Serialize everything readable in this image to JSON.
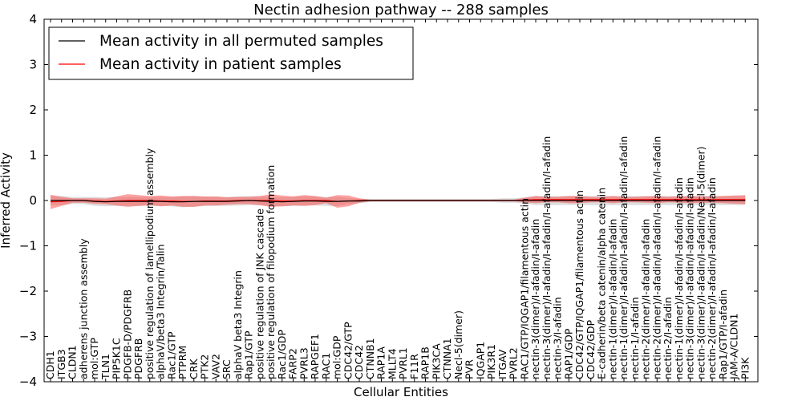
{
  "chart_data": {
    "type": "line",
    "title": "Nectin adhesion pathway -- 288 samples",
    "xlabel": "Cellular Entities",
    "ylabel": "Inferred Activity",
    "ylim": [
      -4,
      4
    ],
    "yticks": [
      -4,
      -3,
      -2,
      -1,
      0,
      1,
      2,
      3,
      4
    ],
    "yticklabels": [
      "−4",
      "−3",
      "−2",
      "−1",
      "0",
      "1",
      "2",
      "3",
      "4"
    ],
    "grid": false,
    "legend_position": "top-left",
    "categories": [
      "CDH1",
      "ITGB3",
      "CLDN1",
      "adherens junction assembly",
      "mol:GTP",
      "TLN1",
      "PIP5K1C",
      "PDGFB-D/PDGFRB",
      "PDGFRB",
      "positive regulation of lamellipodium assembly",
      "alphaV/beta3 Integrin/Talin",
      "Rac1/GTP",
      "PTPRM",
      "CRK",
      "PTK2",
      "VAV2",
      "SRC",
      "alphaV beta3 Integrin",
      "Rap1/GTP",
      "positive regulation of JNK cascade",
      "positive regulation of filopodium formation",
      "Rac1/GDP",
      "FARP2",
      "PVRL3",
      "RAPGEF1",
      "RAC1",
      "mol:GDP",
      "CDC42/GTP",
      "CDC42",
      "CTNNB1",
      "RAP1A",
      "MLLT4",
      "PVRL1",
      "F11R",
      "RAP1B",
      "PIK3CA",
      "CTNNA1",
      "Necl-5(dimer)",
      "PVR",
      "IQGAP1",
      "PIK3R1",
      "ITGAV",
      "PVRL2",
      "RAC1/GTP/IQGAP1/filamentous actin",
      "nectin-3(dimer)/I-afadin/I-afadin",
      "nectin-3(dimer)/I-afadin/I-afadin/I-afadin/I-afadin",
      "nectin-3/I-afadin",
      "RAP1/GDP",
      "CDC42/GTP/IQGAP1/filamentous actin",
      "CDC42/GDP",
      "E-cadherin/beta catenin/alpha catenin",
      "nectin-1(dimer)/I-afadin/I-afadin",
      "nectin-1(dimer)/I-afadin/I-afadin/I-afadin/I-afadin",
      "nectin-1/I-afadin",
      "nectin-2(dimer)/I-afadin/I-afadin",
      "nectin-2(dimer)/I-afadin/I-afadin/I-afadin/I-afadin",
      "nectin-2/I-afadin",
      "nectin-1(dimer)/I-afadin/I-afadin/I-afadin",
      "nectin-3(dimer)/I-afadin/I-afadin/I-afadin",
      "nectin-3(dimer)/I-afadin/I-afadin/Necl-5(dimer)",
      "nectin-2(dimer)/I-afadin/I-afadin/I-afadin",
      "Rap1/GTP/I-afadin",
      "JAM-A/CLDN1",
      "PI3K"
    ],
    "series": [
      {
        "name": "Mean activity in all permuted samples",
        "color": "#000000",
        "band_color": "#c8c8c8",
        "values": [
          0.0,
          0.0,
          0.0,
          0.0,
          -0.02,
          -0.03,
          -0.02,
          -0.02,
          -0.02,
          -0.02,
          -0.02,
          -0.03,
          -0.03,
          -0.02,
          -0.02,
          -0.02,
          -0.02,
          -0.01,
          0.0,
          -0.01,
          -0.02,
          -0.03,
          -0.02,
          -0.01,
          -0.01,
          -0.02,
          -0.02,
          -0.01,
          -0.01,
          0.0,
          0.0,
          0.0,
          0.0,
          0.0,
          0.0,
          0.0,
          0.0,
          0.0,
          0.0,
          0.0,
          0.0,
          0.0,
          0.0,
          0.0,
          0.0,
          0.0,
          0.0,
          0.0,
          0.0,
          0.0,
          0.0,
          0.0,
          0.0,
          0.0,
          0.0,
          0.0,
          0.0,
          0.0,
          0.0,
          0.0,
          0.0,
          0.0,
          0.0,
          0.0
        ],
        "spread": [
          0.1,
          0.1,
          0.08,
          0.08,
          0.1,
          0.1,
          0.1,
          0.1,
          0.1,
          0.1,
          0.1,
          0.1,
          0.12,
          0.12,
          0.1,
          0.1,
          0.1,
          0.1,
          0.1,
          0.1,
          0.1,
          0.1,
          0.1,
          0.1,
          0.1,
          0.1,
          0.1,
          0.07,
          0.05,
          0.03,
          0.03,
          0.03,
          0.03,
          0.03,
          0.03,
          0.03,
          0.03,
          0.03,
          0.03,
          0.03,
          0.03,
          0.05,
          0.05,
          0.07,
          0.1,
          0.1,
          0.1,
          0.1,
          0.1,
          0.1,
          0.1,
          0.1,
          0.1,
          0.1,
          0.1,
          0.1,
          0.1,
          0.1,
          0.1,
          0.1,
          0.1,
          0.1,
          0.1,
          0.1
        ]
      },
      {
        "name": "Mean activity in patient samples",
        "color": "#ff0000",
        "band_color": "#ff3333",
        "values": [
          -0.03,
          -0.02,
          0.0,
          0.0,
          -0.01,
          -0.02,
          -0.01,
          0.0,
          0.0,
          0.0,
          -0.01,
          -0.01,
          -0.02,
          -0.02,
          -0.01,
          -0.01,
          -0.01,
          0.0,
          0.0,
          0.0,
          0.0,
          -0.01,
          -0.01,
          0.0,
          0.0,
          0.0,
          -0.02,
          -0.01,
          0.0,
          0.0,
          0.0,
          0.0,
          0.0,
          0.0,
          0.0,
          0.0,
          0.0,
          0.0,
          0.0,
          0.0,
          0.0,
          0.0,
          0.0,
          0.01,
          0.02,
          0.02,
          0.02,
          0.02,
          0.02,
          0.02,
          0.02,
          0.02,
          0.02,
          0.02,
          0.02,
          0.02,
          0.02,
          0.02,
          0.02,
          0.02,
          0.02,
          0.02,
          0.02,
          0.02
        ],
        "spread": [
          0.16,
          0.1,
          0.05,
          0.05,
          0.06,
          0.06,
          0.1,
          0.14,
          0.12,
          0.1,
          0.12,
          0.1,
          0.12,
          0.12,
          0.1,
          0.1,
          0.08,
          0.08,
          0.08,
          0.1,
          0.14,
          0.12,
          0.1,
          0.12,
          0.1,
          0.06,
          0.14,
          0.12,
          0.05,
          0.02,
          0.02,
          0.02,
          0.02,
          0.02,
          0.02,
          0.02,
          0.02,
          0.02,
          0.02,
          0.02,
          0.02,
          0.02,
          0.02,
          0.05,
          0.08,
          0.06,
          0.06,
          0.08,
          0.08,
          0.06,
          0.06,
          0.08,
          0.06,
          0.06,
          0.07,
          0.08,
          0.06,
          0.07,
          0.08,
          0.07,
          0.07,
          0.08,
          0.09,
          0.1
        ]
      }
    ]
  }
}
